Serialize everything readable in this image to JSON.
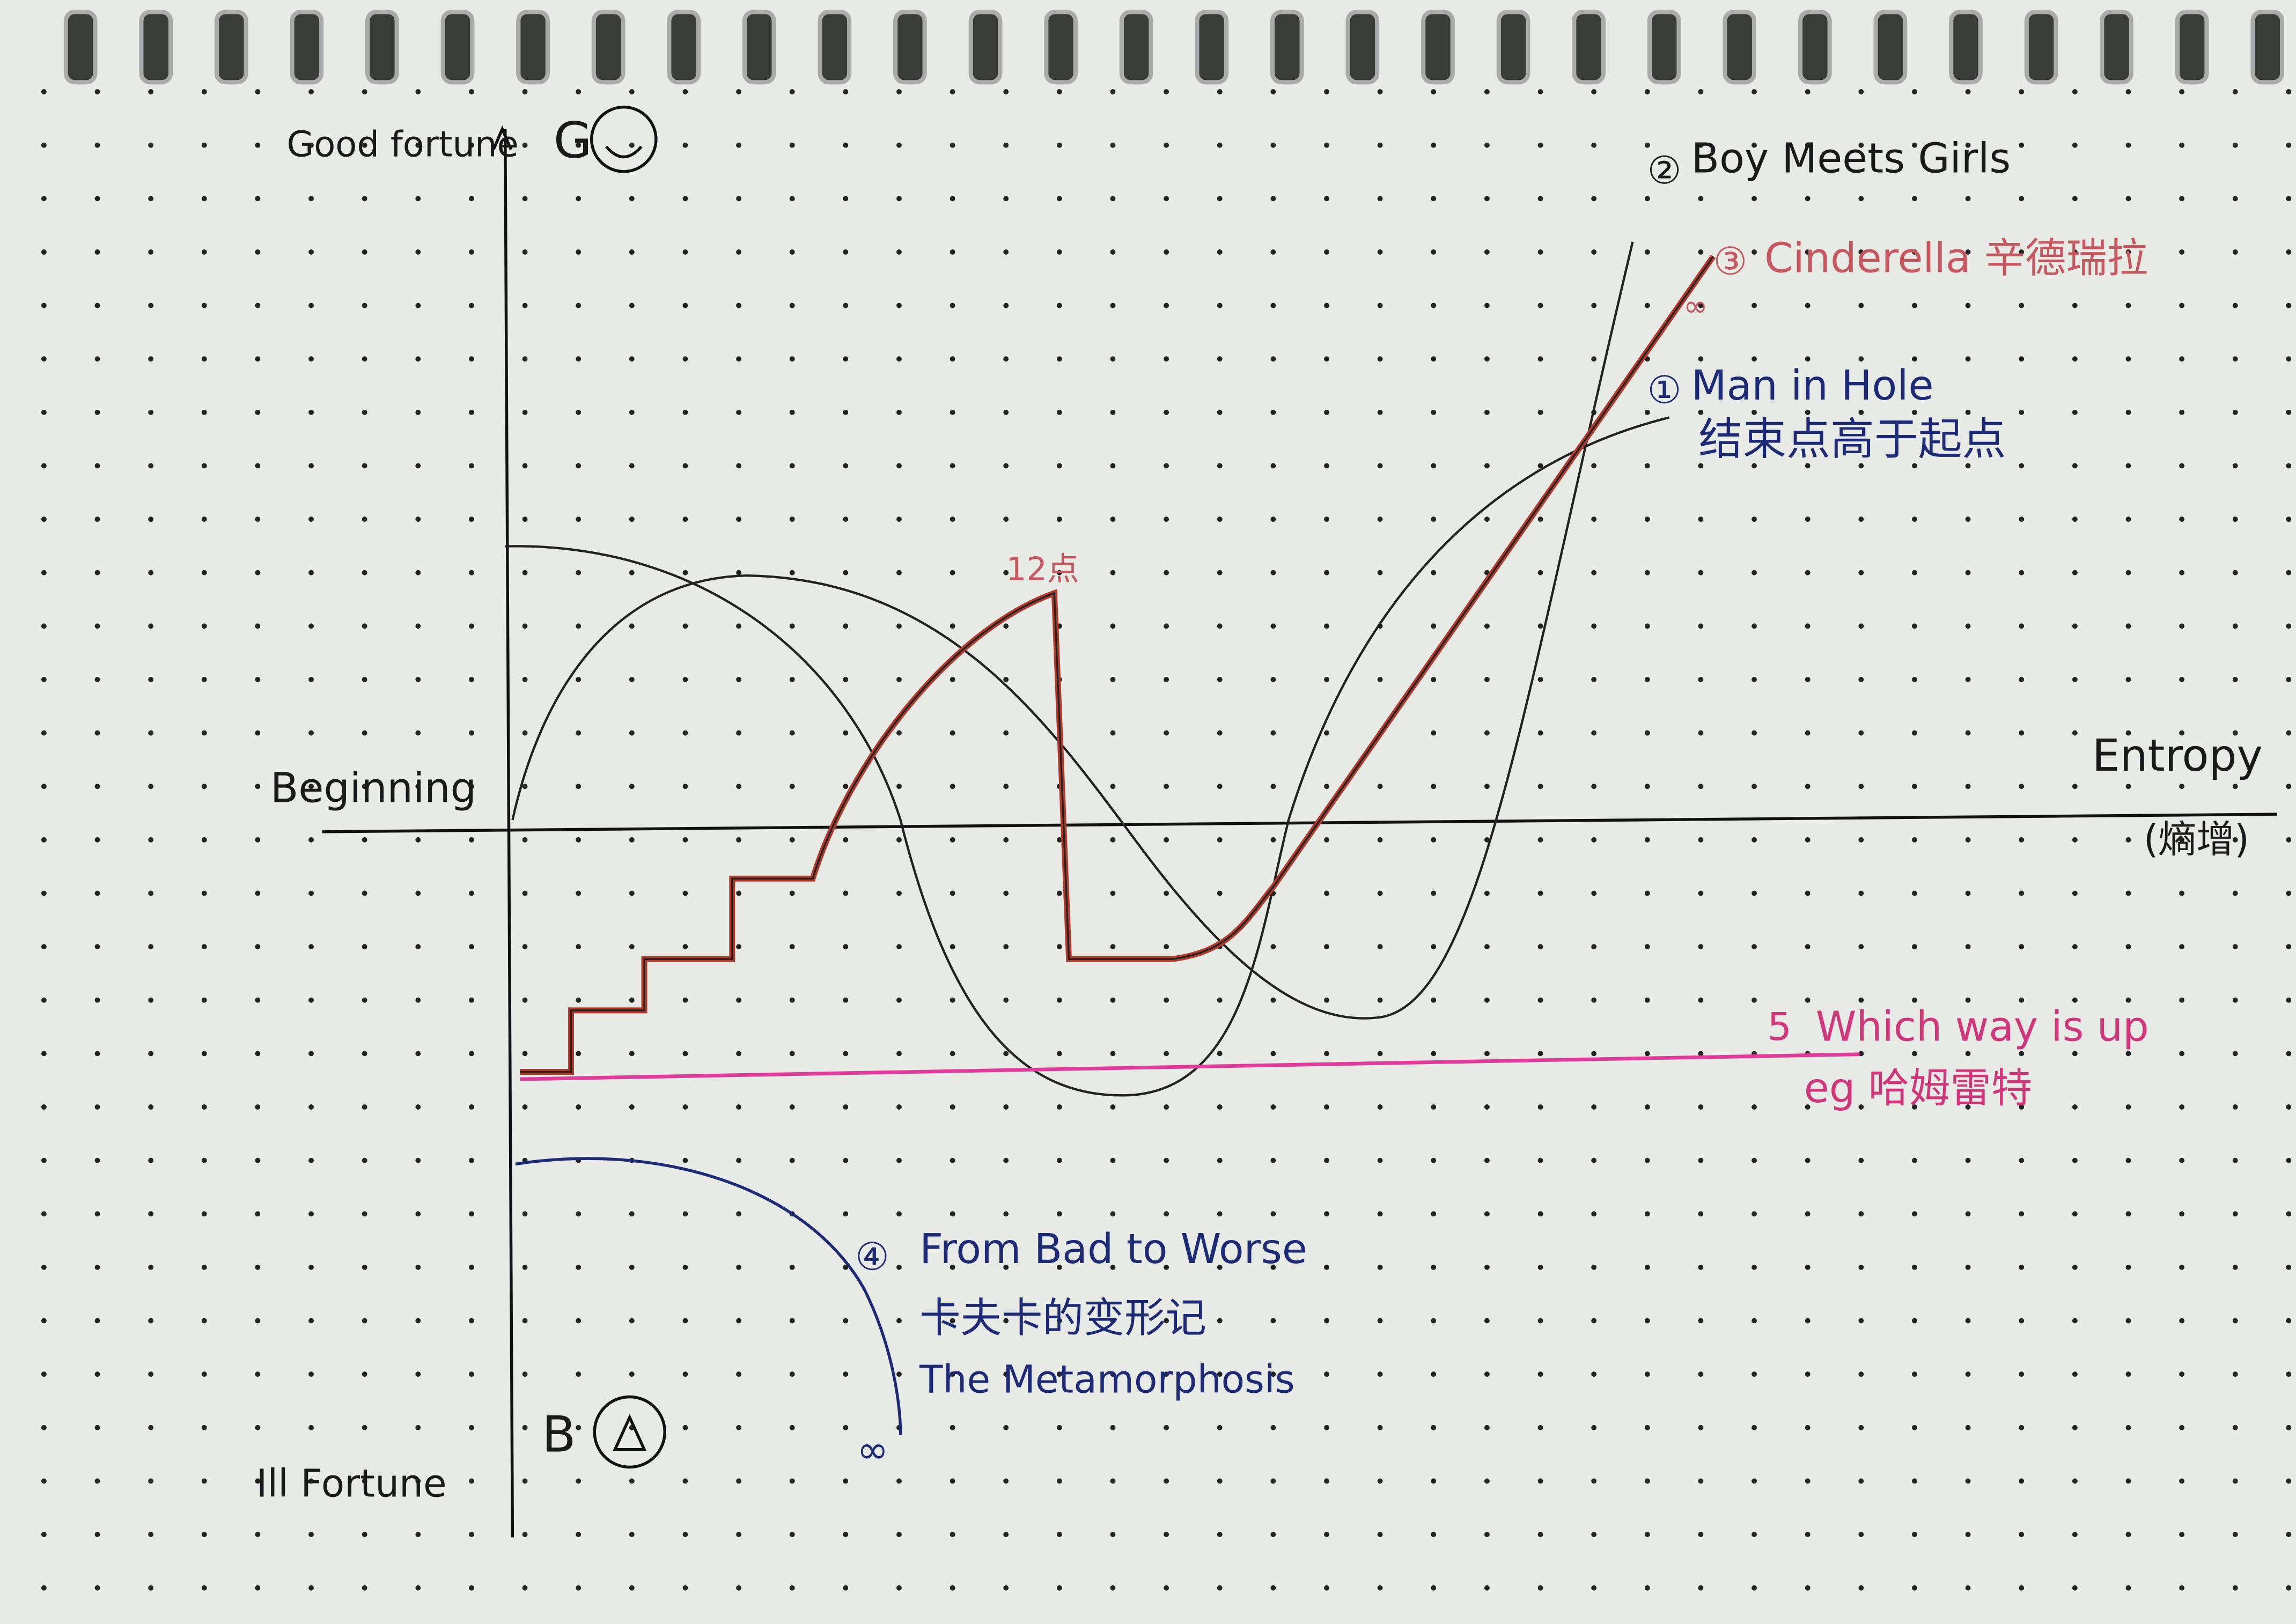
{
  "axes": {
    "y_top_label": "Good fortune",
    "y_top_mark": "G",
    "y_bottom_label": "Ill Fortune",
    "y_bottom_mark": "B",
    "x_label": "Entropy",
    "x_label_note": "(熵增)",
    "origin_label": "Beginning"
  },
  "stories": [
    {
      "number": "①",
      "name": "Man in Hole",
      "note": "结束点高于起点"
    },
    {
      "number": "②",
      "name": "Boy Meets Girls"
    },
    {
      "number": "③",
      "name": "Cinderella",
      "note": "辛德瑞拉",
      "peak_label": "12点",
      "end_mark": "∞"
    },
    {
      "number": "④",
      "name": "From Bad to Worse",
      "note": "卡夫卡的变形记",
      "note2": "The Metamorphosis",
      "end_mark": "∞"
    },
    {
      "number": "5",
      "name": "Which way is up",
      "note": "eg 哈姆雷特"
    }
  ]
}
